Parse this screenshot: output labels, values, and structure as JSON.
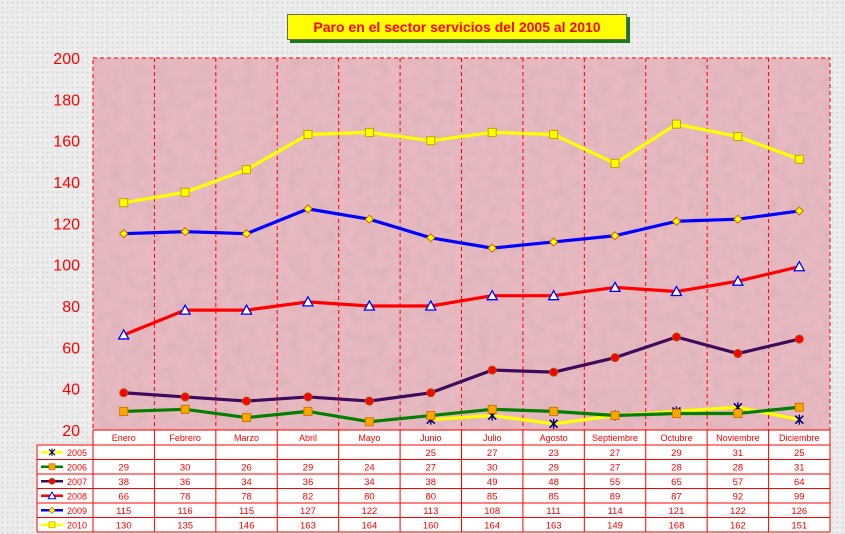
{
  "colors": {
    "plot_bg": "#e8b9c0",
    "grid": "#ff0000",
    "axis_text": "#ff0000",
    "table_text": "#ff0000"
  },
  "chart_data": {
    "type": "line",
    "title": "Paro en el sector servicios del 2005 al 2010",
    "xlabel": "",
    "ylabel": "",
    "ylim": [
      20,
      200
    ],
    "yticks": [
      20,
      40,
      60,
      80,
      100,
      120,
      140,
      160,
      180,
      200
    ],
    "grid": "vertical",
    "legend": "data-table",
    "categories": [
      "Enero",
      "Febrero",
      "Marzo",
      "Abril",
      "Mayo",
      "Junio",
      "Julio",
      "Agosto",
      "Septiembre",
      "Octubre",
      "Noviembre",
      "Diciembre"
    ],
    "series": [
      {
        "name": "2005",
        "color": "#00007f",
        "marker": "star",
        "values": [
          null,
          null,
          null,
          null,
          null,
          25,
          27,
          23,
          27,
          29,
          31,
          25
        ]
      },
      {
        "name": "2006",
        "color": "#007f00",
        "marker": "square",
        "values": [
          29,
          30,
          26,
          29,
          24,
          27,
          30,
          29,
          27,
          28,
          28,
          31
        ]
      },
      {
        "name": "2007",
        "color": "#3d0a5c",
        "marker": "circle",
        "values": [
          38,
          36,
          34,
          36,
          34,
          38,
          49,
          48,
          55,
          65,
          57,
          64
        ]
      },
      {
        "name": "2008",
        "color": "#ff0000",
        "marker": "triangle",
        "values": [
          66,
          78,
          78,
          82,
          80,
          80,
          85,
          85,
          89,
          87,
          92,
          99
        ]
      },
      {
        "name": "2009",
        "color": "#0000ff",
        "marker": "diamond",
        "values": [
          115,
          116,
          115,
          127,
          122,
          113,
          108,
          111,
          114,
          121,
          122,
          126
        ]
      },
      {
        "name": "2010",
        "color": "#ffff00",
        "marker": "square",
        "values": [
          130,
          135,
          146,
          163,
          164,
          160,
          164,
          163,
          149,
          168,
          162,
          151
        ]
      }
    ]
  }
}
